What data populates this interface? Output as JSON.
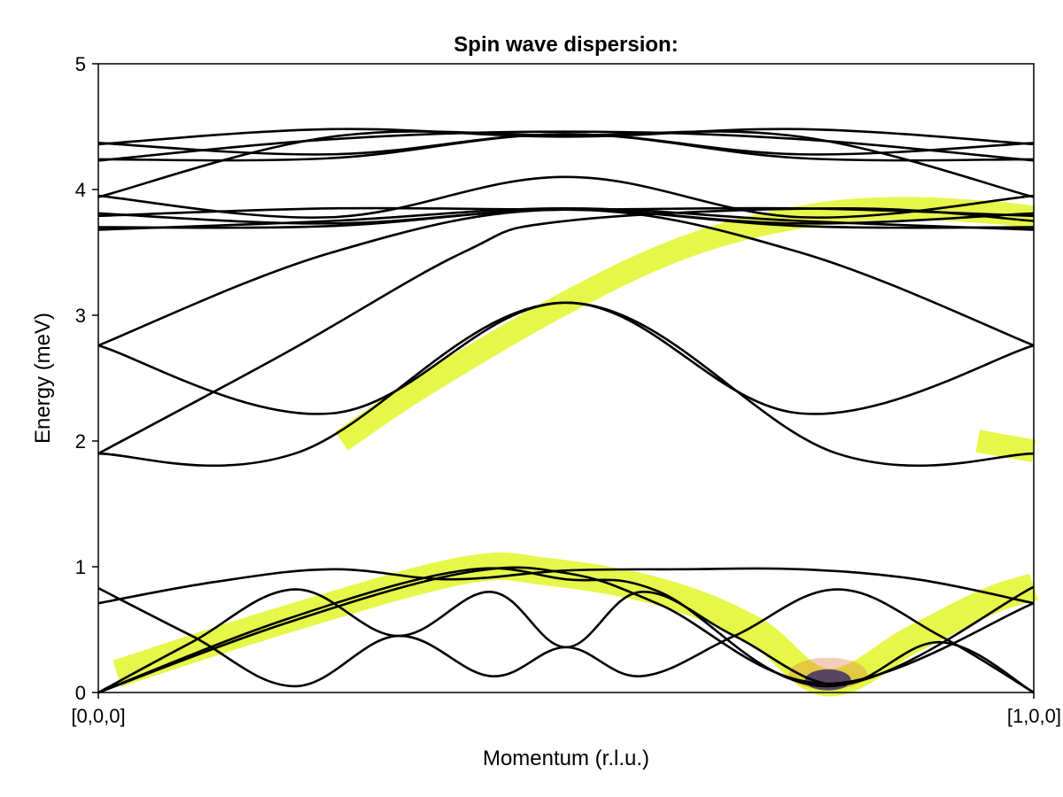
{
  "chart_data": {
    "type": "line",
    "title": "Spin wave dispersion:",
    "xlabel": "Momentum (r.l.u.)",
    "ylabel": "Energy (meV)",
    "xlim": [
      0,
      1
    ],
    "ylim": [
      0,
      5
    ],
    "x_ticks": [
      {
        "value": 0,
        "label": "[0,0,0]"
      },
      {
        "value": 1,
        "label": "[1,0,0]"
      }
    ],
    "y_ticks": [
      {
        "value": 0,
        "label": "0"
      },
      {
        "value": 1,
        "label": "1"
      },
      {
        "value": 2,
        "label": "2"
      },
      {
        "value": 3,
        "label": "3"
      },
      {
        "value": 4,
        "label": "4"
      },
      {
        "value": 5,
        "label": "5"
      }
    ],
    "grid": false,
    "line_color": "#000000",
    "intensity_color": "#e6f74a",
    "intensity_peak_color": "#2a1a6e",
    "bands_high": [
      {
        "x": [
          0,
          0.25,
          0.5,
          0.75,
          1
        ],
        "y": [
          3.68,
          3.75,
          3.85,
          3.75,
          3.68
        ]
      },
      {
        "x": [
          0,
          0.25,
          0.5,
          0.75,
          1
        ],
        "y": [
          3.7,
          3.71,
          3.84,
          3.71,
          3.7
        ]
      },
      {
        "x": [
          0,
          0.25,
          0.5,
          0.75,
          1
        ],
        "y": [
          3.79,
          3.85,
          3.84,
          3.85,
          3.79
        ]
      },
      {
        "x": [
          0,
          0.25,
          0.5,
          0.75,
          1
        ],
        "y": [
          3.81,
          3.73,
          3.84,
          3.73,
          3.81
        ]
      },
      {
        "x": [
          0,
          0.25,
          0.5,
          0.75,
          1
        ],
        "y": [
          4.36,
          4.48,
          4.42,
          4.48,
          4.36
        ]
      },
      {
        "x": [
          0,
          0.25,
          0.5,
          0.75,
          1
        ],
        "y": [
          4.37,
          4.28,
          4.44,
          4.28,
          4.37
        ]
      },
      {
        "x": [
          0,
          0.25,
          0.5,
          0.75,
          1
        ],
        "y": [
          4.23,
          4.4,
          4.46,
          4.4,
          4.23
        ]
      },
      {
        "x": [
          0,
          0.25,
          0.5,
          0.75,
          1
        ],
        "y": [
          4.24,
          4.25,
          4.44,
          4.25,
          4.24
        ]
      },
      {
        "x": [
          0,
          0.25,
          0.5,
          0.75,
          1
        ],
        "y": [
          3.94,
          4.42,
          4.43,
          4.42,
          3.94
        ]
      },
      {
        "x": [
          0,
          0.25,
          0.5,
          0.75,
          1
        ],
        "y": [
          3.95,
          3.78,
          4.1,
          3.78,
          3.95
        ]
      },
      {
        "x": [
          0,
          0.25,
          0.5,
          0.75,
          1
        ],
        "y": [
          2.76,
          3.5,
          3.84,
          3.5,
          2.76
        ]
      },
      {
        "x": [
          0,
          0.25,
          0.5,
          0.75,
          1
        ],
        "y": [
          2.76,
          2.22,
          3.1,
          2.22,
          2.76
        ]
      },
      {
        "x": [
          0,
          0.21,
          0.5,
          0.79,
          1
        ],
        "y": [
          1.9,
          1.9,
          3.1,
          1.9,
          1.9
        ]
      },
      {
        "x": [
          0,
          0.2,
          0.39,
          0.5,
          0.8,
          1
        ],
        "y": [
          1.9,
          2.7,
          3.5,
          3.75,
          3.85,
          3.75
        ]
      }
    ],
    "bands_low": [
      {
        "x": [
          0,
          0.125,
          0.25,
          0.375,
          0.5,
          0.625,
          0.75,
          0.875,
          1
        ],
        "y": [
          0.71,
          0.88,
          0.98,
          0.9,
          0.97,
          0.98,
          0.98,
          0.9,
          0.71
        ]
      },
      {
        "x": [
          0,
          0.2,
          0.39,
          0.5,
          0.6,
          0.78,
          1
        ],
        "y": [
          0.0,
          0.58,
          0.97,
          0.9,
          0.8,
          0.05,
          0.84
        ]
      },
      {
        "x": [
          0,
          0.2,
          0.39,
          0.5,
          0.6,
          0.78,
          1
        ],
        "y": [
          0.0,
          0.55,
          0.95,
          0.95,
          0.7,
          0.07,
          0.71
        ]
      },
      {
        "x": [
          0,
          0.1,
          0.21,
          0.32,
          0.42,
          0.5,
          0.58,
          0.68,
          0.79,
          0.9,
          1
        ],
        "y": [
          0.83,
          0.45,
          0.05,
          0.45,
          0.13,
          0.36,
          0.13,
          0.45,
          0.82,
          0.45,
          0.0
        ]
      },
      {
        "x": [
          0,
          0.1,
          0.21,
          0.32,
          0.42,
          0.5,
          0.58,
          0.68,
          0.79,
          0.9,
          1
        ],
        "y": [
          0.0,
          0.4,
          0.82,
          0.45,
          0.8,
          0.36,
          0.8,
          0.45,
          0.06,
          0.4,
          0.0
        ]
      }
    ],
    "intensity_paths": [
      {
        "x": [
          0.02,
          0.2,
          0.39,
          0.48,
          0.6,
          0.7,
          0.78,
          0.87,
          0.95,
          1.0
        ],
        "y": [
          0.15,
          0.58,
          0.97,
          0.96,
          0.8,
          0.5,
          0.08,
          0.42,
          0.72,
          0.84
        ],
        "width": 0.22
      },
      {
        "x": [
          0.26,
          0.35,
          0.5,
          0.63,
          0.75,
          0.85,
          0.95,
          1.0
        ],
        "y": [
          2.0,
          2.45,
          3.1,
          3.55,
          3.78,
          3.85,
          3.82,
          3.78
        ],
        "width": 0.18
      },
      {
        "x": [
          0.94,
          1.0
        ],
        "y": [
          2.0,
          1.92
        ],
        "width": 0.18
      }
    ]
  }
}
